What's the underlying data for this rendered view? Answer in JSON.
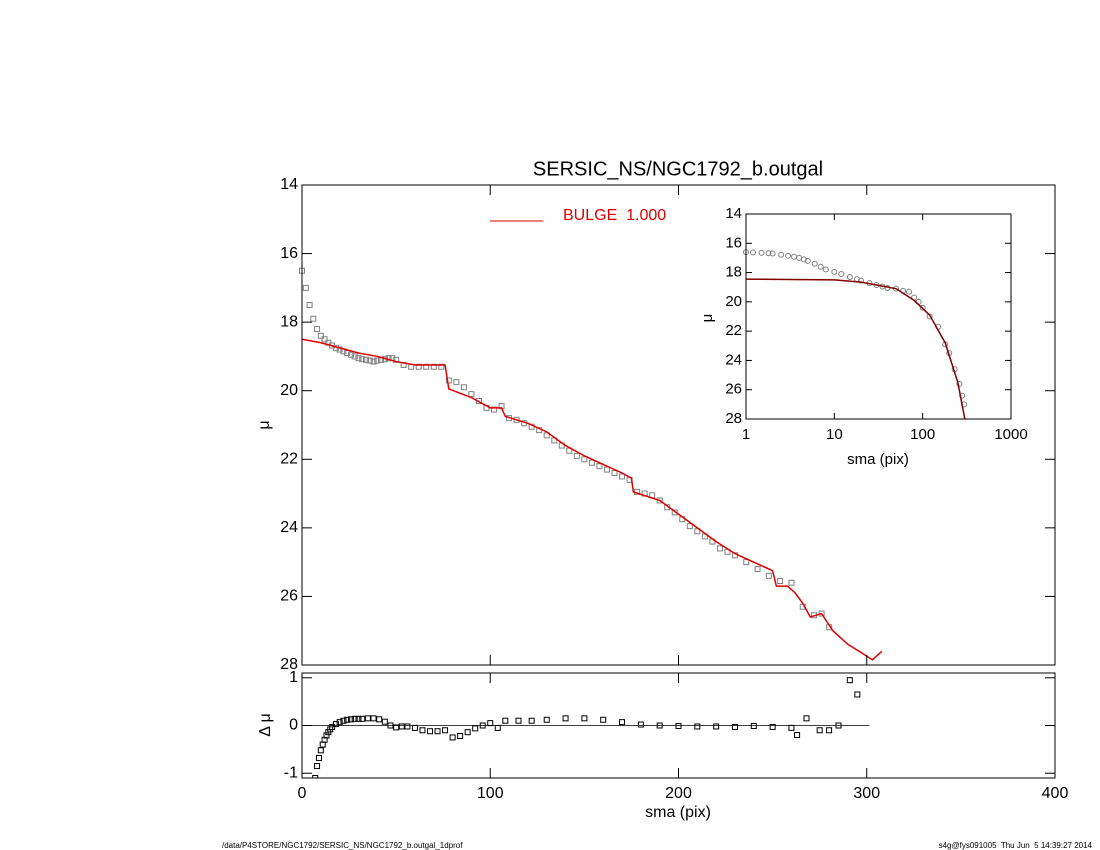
{
  "chart_data": [
    {
      "type": "profile",
      "title": "SERSIC_NS/NGC1792_b.outgal",
      "y_label": "μ",
      "xlim": [
        0,
        400
      ],
      "xticks": [
        0,
        100,
        200,
        300,
        400
      ],
      "ylim": [
        28,
        14
      ],
      "yticks": [
        14,
        16,
        18,
        20,
        22,
        24,
        26,
        28
      ],
      "series": [
        {
          "marker": "square",
          "color": "#808080",
          "x": [
            0,
            2,
            4,
            6,
            8,
            10,
            12,
            14,
            16,
            18,
            20,
            22,
            24,
            26,
            28,
            30,
            32,
            34,
            36,
            38,
            40,
            42,
            44,
            46,
            48,
            50,
            54,
            58,
            62,
            66,
            70,
            74,
            78,
            82,
            86,
            90,
            94,
            98,
            102,
            106,
            110,
            114,
            118,
            122,
            126,
            130,
            134,
            138,
            142,
            146,
            150,
            154,
            158,
            162,
            166,
            170,
            174,
            178,
            182,
            186,
            190,
            194,
            198,
            202,
            206,
            210,
            214,
            218,
            222,
            226,
            230,
            236,
            242,
            248,
            254,
            260,
            266,
            272,
            276,
            280
          ],
          "values": [
            16.5,
            17.0,
            17.5,
            17.9,
            18.2,
            18.4,
            18.5,
            18.6,
            18.68,
            18.75,
            18.8,
            18.85,
            18.9,
            18.95,
            19.0,
            19.05,
            19.08,
            19.1,
            19.12,
            19.15,
            19.12,
            19.1,
            19.08,
            19.05,
            19.05,
            19.1,
            19.25,
            19.3,
            19.3,
            19.3,
            19.3,
            19.3,
            19.7,
            19.75,
            19.9,
            20.1,
            20.3,
            20.5,
            20.55,
            20.45,
            20.8,
            20.85,
            20.95,
            21.05,
            21.15,
            21.3,
            21.45,
            21.6,
            21.75,
            21.9,
            22.0,
            22.1,
            22.2,
            22.3,
            22.4,
            22.5,
            22.6,
            22.95,
            23.0,
            23.05,
            23.2,
            23.4,
            23.55,
            23.75,
            23.95,
            24.1,
            24.25,
            24.4,
            24.6,
            24.7,
            24.8,
            25.0,
            25.2,
            25.4,
            25.55,
            25.6,
            26.3,
            26.55,
            26.5,
            26.9
          ]
        },
        {
          "name": "BULGE  1.000",
          "color": "#e00000",
          "x": [
            0,
            10,
            20,
            30,
            40,
            50,
            60,
            70,
            76,
            78,
            90,
            100,
            106,
            108,
            120,
            130,
            140,
            150,
            160,
            170,
            175,
            176,
            190,
            200,
            210,
            220,
            230,
            240,
            250,
            252,
            258,
            262,
            266,
            270,
            276,
            282,
            290,
            296,
            303,
            308
          ],
          "values": [
            18.5,
            18.6,
            18.75,
            18.9,
            19.0,
            19.15,
            19.25,
            19.25,
            19.25,
            19.95,
            20.2,
            20.5,
            20.5,
            20.75,
            20.95,
            21.2,
            21.6,
            21.9,
            22.15,
            22.4,
            22.55,
            22.95,
            23.2,
            23.6,
            24.0,
            24.4,
            24.75,
            25.0,
            25.25,
            25.7,
            25.7,
            25.9,
            26.2,
            26.6,
            26.5,
            27.0,
            27.4,
            27.6,
            27.85,
            27.6
          ]
        }
      ]
    },
    {
      "type": "residual",
      "x_label": "sma (pix)",
      "y_label": "Δ μ",
      "xlim": [
        0,
        400
      ],
      "xticks": [
        0,
        100,
        200,
        300,
        400
      ],
      "ylim": [
        -1.1,
        1.1
      ],
      "yticks": [
        -1,
        0,
        1
      ],
      "series": [
        {
          "marker": "square",
          "color": "#000000",
          "x": [
            7,
            8,
            9,
            10,
            11,
            12,
            13,
            14,
            15,
            16,
            18,
            20,
            22,
            24,
            26,
            28,
            30,
            32,
            35,
            38,
            41,
            44,
            47,
            50,
            53,
            56,
            60,
            64,
            68,
            72,
            76,
            80,
            84,
            88,
            92,
            96,
            100,
            104,
            108,
            115,
            122,
            130,
            140,
            150,
            160,
            170,
            180,
            190,
            200,
            210,
            220,
            230,
            240,
            250,
            260,
            263,
            268,
            275,
            280,
            285,
            291,
            295
          ],
          "values": [
            -1.1,
            -0.85,
            -0.68,
            -0.52,
            -0.4,
            -0.3,
            -0.21,
            -0.14,
            -0.08,
            -0.03,
            0.03,
            0.07,
            0.1,
            0.12,
            0.13,
            0.14,
            0.14,
            0.14,
            0.15,
            0.15,
            0.13,
            0.08,
            0.0,
            -0.04,
            -0.02,
            -0.02,
            -0.05,
            -0.1,
            -0.12,
            -0.12,
            -0.1,
            -0.25,
            -0.22,
            -0.14,
            -0.06,
            0.0,
            0.05,
            -0.05,
            0.1,
            0.1,
            0.1,
            0.12,
            0.15,
            0.15,
            0.12,
            0.07,
            0.02,
            0.0,
            -0.01,
            -0.02,
            -0.02,
            -0.03,
            -0.01,
            -0.03,
            -0.05,
            -0.2,
            0.15,
            -0.1,
            -0.1,
            0.0,
            0.95,
            0.65
          ]
        }
      ]
    },
    {
      "type": "profile",
      "x_label": "sma (pix)",
      "y_label": "μ",
      "xscale": "log",
      "xlim": [
        1,
        1000
      ],
      "xticks": [
        1,
        10,
        100,
        1000
      ],
      "ylim": [
        28,
        14
      ],
      "yticks": [
        14,
        16,
        18,
        20,
        22,
        24,
        26,
        28
      ],
      "series": [
        {
          "marker": "circle",
          "color": "#808080",
          "x": [
            1,
            1.2,
            1.5,
            1.8,
            2,
            2.5,
            3,
            3.5,
            4,
            4.5,
            5,
            6,
            7,
            8,
            10,
            12,
            15,
            18,
            20,
            25,
            30,
            35,
            40,
            50,
            60,
            70,
            80,
            90,
            100,
            120,
            150,
            180,
            200,
            230,
            260,
            280,
            295
          ],
          "values": [
            16.6,
            16.62,
            16.65,
            16.68,
            16.7,
            16.78,
            16.85,
            16.92,
            17.0,
            17.1,
            17.2,
            17.4,
            17.6,
            17.78,
            17.95,
            18.1,
            18.3,
            18.45,
            18.55,
            18.72,
            18.85,
            18.95,
            19.05,
            19.1,
            19.25,
            19.3,
            19.7,
            20.0,
            20.4,
            21.0,
            21.7,
            22.9,
            23.5,
            24.6,
            25.6,
            26.4,
            27.0
          ]
        },
        {
          "color": "#800000",
          "x": [
            1,
            10,
            20,
            50,
            80,
            120,
            180,
            250,
            300
          ],
          "values": [
            18.45,
            18.5,
            18.65,
            19.1,
            19.9,
            20.9,
            22.8,
            25.5,
            28.0
          ]
        }
      ]
    }
  ],
  "footer": {
    "left": "/data/P4STORE/NGC1792/SERSIC_NS/NGC1792_b.outgal_1dprof",
    "right": "s4g@fys091005  Thu Jun  5 14:39:27 2014"
  }
}
